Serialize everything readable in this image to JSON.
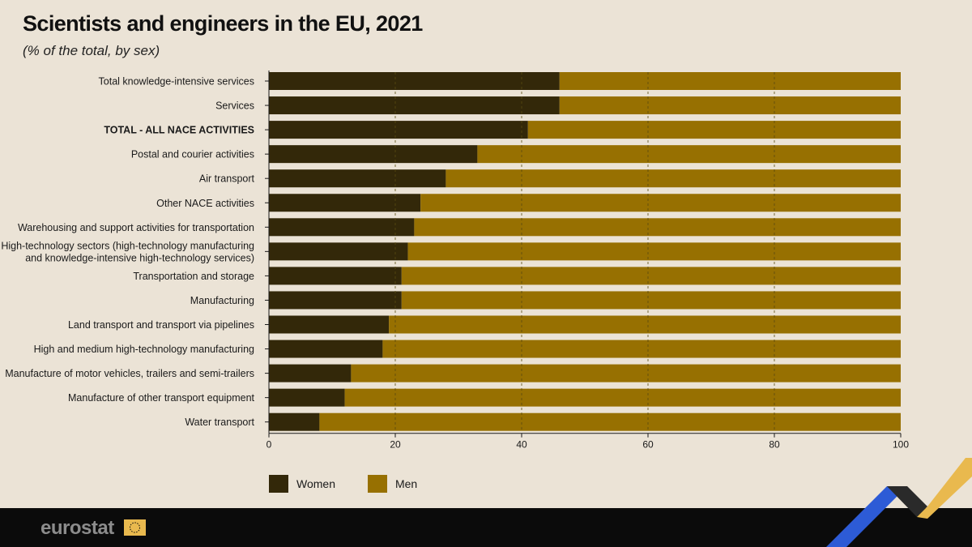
{
  "colors": {
    "women": "#332809",
    "men": "#977001",
    "background": "#ebe3d6",
    "grid": "#5a4a10",
    "brand_gold": "#e9b94e",
    "brand_blue": "#2d5bd6"
  },
  "brand": {
    "name": "eurostat",
    "flag_icon": "eu-flag-icon"
  },
  "legend": [
    {
      "key": "women",
      "label": "Women"
    },
    {
      "key": "men",
      "label": "Men"
    }
  ],
  "chart_data": {
    "type": "bar",
    "orientation": "horizontal",
    "stacked": true,
    "title": "Scientists and engineers in the EU, 2021",
    "subtitle": "(% of the total, by sex)",
    "xlabel": "",
    "ylabel": "",
    "xlim": [
      0,
      100
    ],
    "xticks": [
      0,
      20,
      40,
      60,
      80,
      100
    ],
    "grid": true,
    "legend_position": "bottom-left",
    "categories": [
      "Total knowledge-intensive services",
      "Services",
      "TOTAL - ALL NACE ACTIVITIES",
      "Postal and courier activities",
      "Air transport",
      "Other NACE activities",
      "Warehousing and support activities for transportation",
      "High-technology sectors (high-technology manufacturing and knowledge-intensive high-technology services)",
      "Transportation and storage",
      "Manufacturing",
      "Land transport and transport via pipelines",
      "High and medium high-technology manufacturing",
      "Manufacture of motor vehicles, trailers and semi-trailers",
      "Manufacture of other transport equipment",
      "Water transport"
    ],
    "category_lines": [
      [
        "Total knowledge-intensive services"
      ],
      [
        "Services"
      ],
      [
        "TOTAL - ALL NACE ACTIVITIES"
      ],
      [
        "Postal and courier activities"
      ],
      [
        "Air transport"
      ],
      [
        "Other NACE activities"
      ],
      [
        "Warehousing and support activities for transportation"
      ],
      [
        "High-technology sectors (high-technology manufacturing",
        "and knowledge-intensive high-technology services)"
      ],
      [
        "Transportation and storage"
      ],
      [
        "Manufacturing"
      ],
      [
        "Land transport and transport via pipelines"
      ],
      [
        "High and medium high-technology manufacturing"
      ],
      [
        "Manufacture of motor vehicles, trailers and semi-trailers"
      ],
      [
        "Manufacture of other transport equipment"
      ],
      [
        "Water transport"
      ]
    ],
    "highlight": [
      "TOTAL - ALL NACE ACTIVITIES"
    ],
    "series": [
      {
        "name": "Women",
        "values": [
          46,
          46,
          41,
          33,
          28,
          24,
          23,
          22,
          21,
          21,
          19,
          18,
          13,
          12,
          8
        ]
      },
      {
        "name": "Men",
        "values": [
          54,
          54,
          59,
          67,
          72,
          76,
          77,
          78,
          79,
          79,
          81,
          82,
          87,
          88,
          92
        ]
      }
    ]
  }
}
